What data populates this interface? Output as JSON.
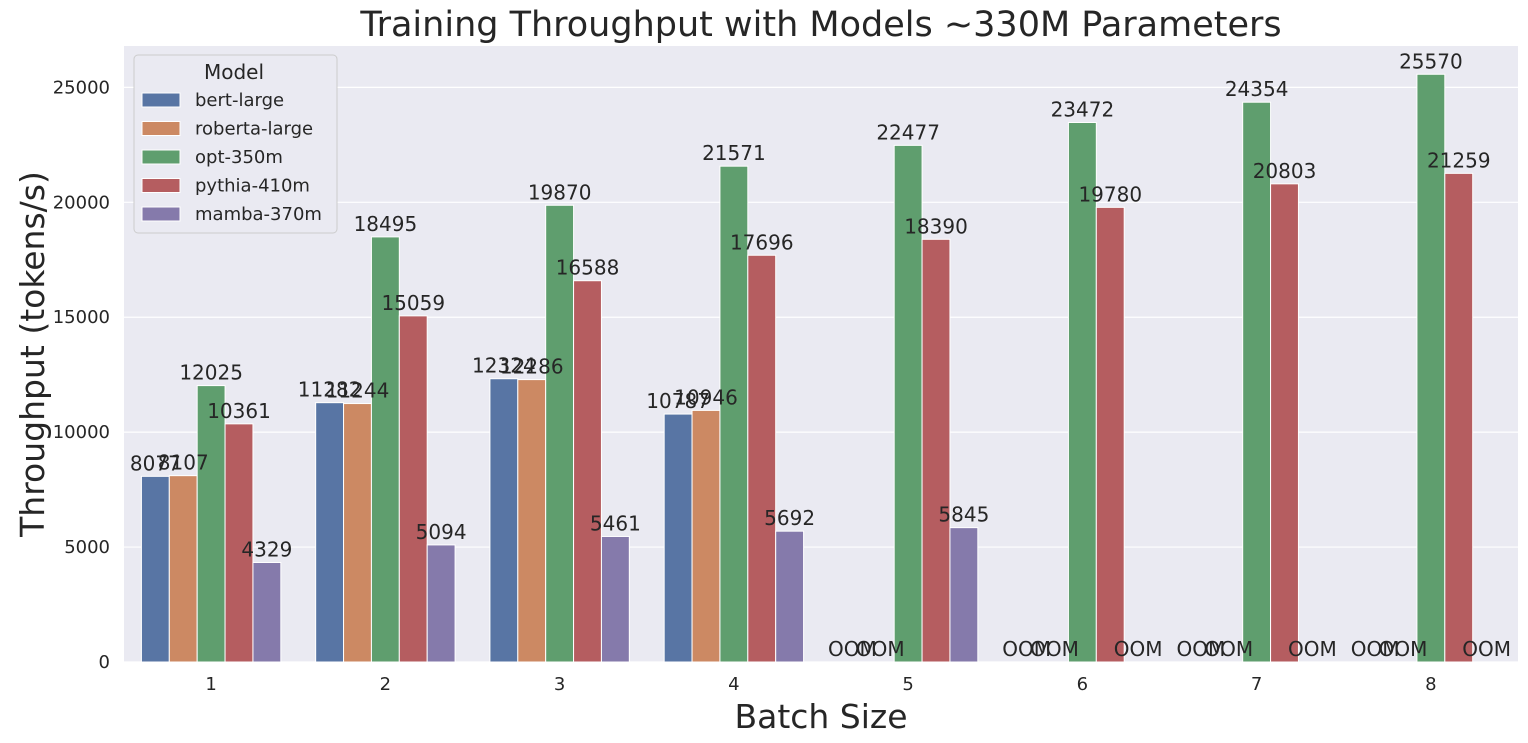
{
  "chart_data": {
    "type": "bar",
    "title": "Training Throughput with Models ~330M Parameters",
    "xlabel": "Batch Size",
    "ylabel": "Throughput (tokens/s)",
    "ylim": [
      0,
      26800
    ],
    "yticks": [
      0,
      5000,
      10000,
      15000,
      20000,
      25000
    ],
    "categories": [
      "1",
      "2",
      "3",
      "4",
      "5",
      "6",
      "7",
      "8"
    ],
    "oom_label": "OOM",
    "legend": {
      "title": "Model",
      "placement": "top-left"
    },
    "grid": true,
    "series": [
      {
        "name": "bert-large",
        "color": "#5875a4",
        "values": [
          8077,
          11282,
          12324,
          10787,
          null,
          null,
          null,
          null
        ],
        "oom": [
          false,
          false,
          false,
          false,
          true,
          true,
          true,
          true
        ]
      },
      {
        "name": "roberta-large",
        "color": "#cc8963",
        "values": [
          8107,
          11244,
          12286,
          10946,
          null,
          null,
          null,
          null
        ],
        "oom": [
          false,
          false,
          false,
          false,
          true,
          true,
          true,
          true
        ]
      },
      {
        "name": "opt-350m",
        "color": "#5f9e6e",
        "values": [
          12025,
          18495,
          19870,
          21571,
          22477,
          23472,
          24354,
          25570
        ],
        "oom": [
          false,
          false,
          false,
          false,
          false,
          false,
          false,
          false
        ]
      },
      {
        "name": "pythia-410m",
        "color": "#b55d60",
        "values": [
          10361,
          15059,
          16588,
          17696,
          18390,
          19780,
          20803,
          21259
        ],
        "oom": [
          false,
          false,
          false,
          false,
          false,
          false,
          false,
          false
        ]
      },
      {
        "name": "mamba-370m",
        "color": "#857aab",
        "values": [
          4329,
          5094,
          5461,
          5692,
          5845,
          null,
          null,
          null
        ],
        "oom": [
          false,
          false,
          false,
          false,
          false,
          true,
          true,
          true
        ]
      }
    ]
  }
}
